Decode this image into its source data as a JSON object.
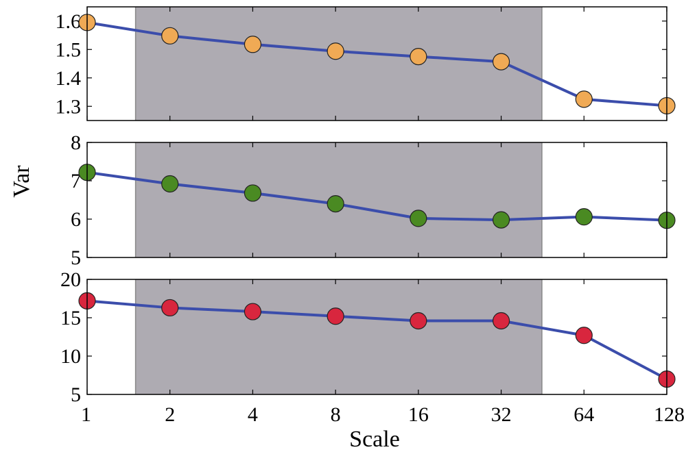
{
  "chart_data": {
    "type": "line",
    "xlabel": "Scale",
    "ylabel": "Var",
    "x": [
      1,
      2,
      4,
      8,
      16,
      32,
      64,
      128
    ],
    "x_tick_labels": [
      "1",
      "2",
      "4",
      "8",
      "16",
      "32",
      "64",
      "128"
    ],
    "x_scale": "log2",
    "x_range": [
      1,
      128
    ],
    "highlight_x_range": [
      1.5,
      45
    ],
    "grid": false,
    "line_color": "#3b4dab",
    "highlight_color": "#aeabb2",
    "panels": [
      {
        "values": [
          1.595,
          1.548,
          1.518,
          1.494,
          1.475,
          1.457,
          1.325,
          1.302
        ],
        "ylim": [
          1.25,
          1.65
        ],
        "yticks": [
          1.3,
          1.4,
          1.5,
          1.6
        ],
        "ytick_labels": [
          "1.3",
          "1.4",
          "1.5",
          "1.6"
        ],
        "marker_color": "#f0aa55"
      },
      {
        "values": [
          7.22,
          6.92,
          6.68,
          6.4,
          6.02,
          5.98,
          6.06,
          5.97
        ],
        "ylim": [
          5,
          8
        ],
        "yticks": [
          5,
          6,
          7,
          8
        ],
        "ytick_labels": [
          "5",
          "6",
          "7",
          "8"
        ],
        "marker_color": "#4a8a22"
      },
      {
        "values": [
          17.2,
          16.3,
          15.8,
          15.2,
          14.6,
          14.6,
          12.7,
          7.0
        ],
        "ylim": [
          5,
          20
        ],
        "yticks": [
          5,
          10,
          15,
          20
        ],
        "ytick_labels": [
          "5",
          "10",
          "15",
          "20"
        ],
        "marker_color": "#d8263e"
      }
    ]
  }
}
